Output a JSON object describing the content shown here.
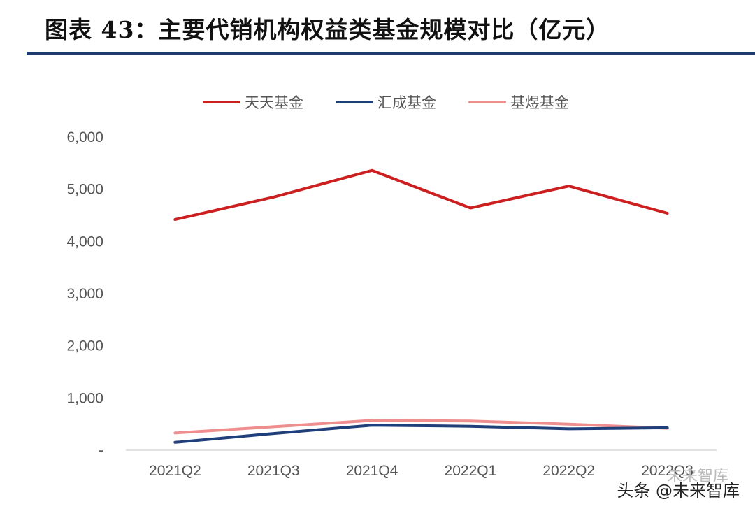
{
  "title": "图表 43：主要代销机构权益类基金规模对比（亿元）",
  "chart_data": {
    "type": "line",
    "categories": [
      "2021Q2",
      "2021Q3",
      "2021Q4",
      "2022Q1",
      "2022Q2",
      "2022Q3"
    ],
    "series": [
      {
        "name": "天天基金",
        "color": "#cc1f1f",
        "values": [
          4420,
          4850,
          5360,
          4640,
          5060,
          4540
        ]
      },
      {
        "name": "汇成基金",
        "color": "#1f3f7a",
        "values": [
          150,
          320,
          480,
          460,
          410,
          430
        ]
      },
      {
        "name": "基煜基金",
        "color": "#ef8e8e",
        "values": [
          330,
          450,
          570,
          560,
          500,
          420
        ]
      }
    ],
    "ylim": [
      0,
      6000
    ],
    "yticks": [
      {
        "value": 0,
        "label": "-"
      },
      {
        "value": 1000,
        "label": "1,000"
      },
      {
        "value": 2000,
        "label": "2,000"
      },
      {
        "value": 3000,
        "label": "3,000"
      },
      {
        "value": 4000,
        "label": "4,000"
      },
      {
        "value": 5000,
        "label": "5,000"
      },
      {
        "value": 6000,
        "label": "6,000"
      }
    ],
    "legend_position": "top"
  },
  "watermark": {
    "text": "头条 @未来智库",
    "faint_text": "未来智库"
  }
}
